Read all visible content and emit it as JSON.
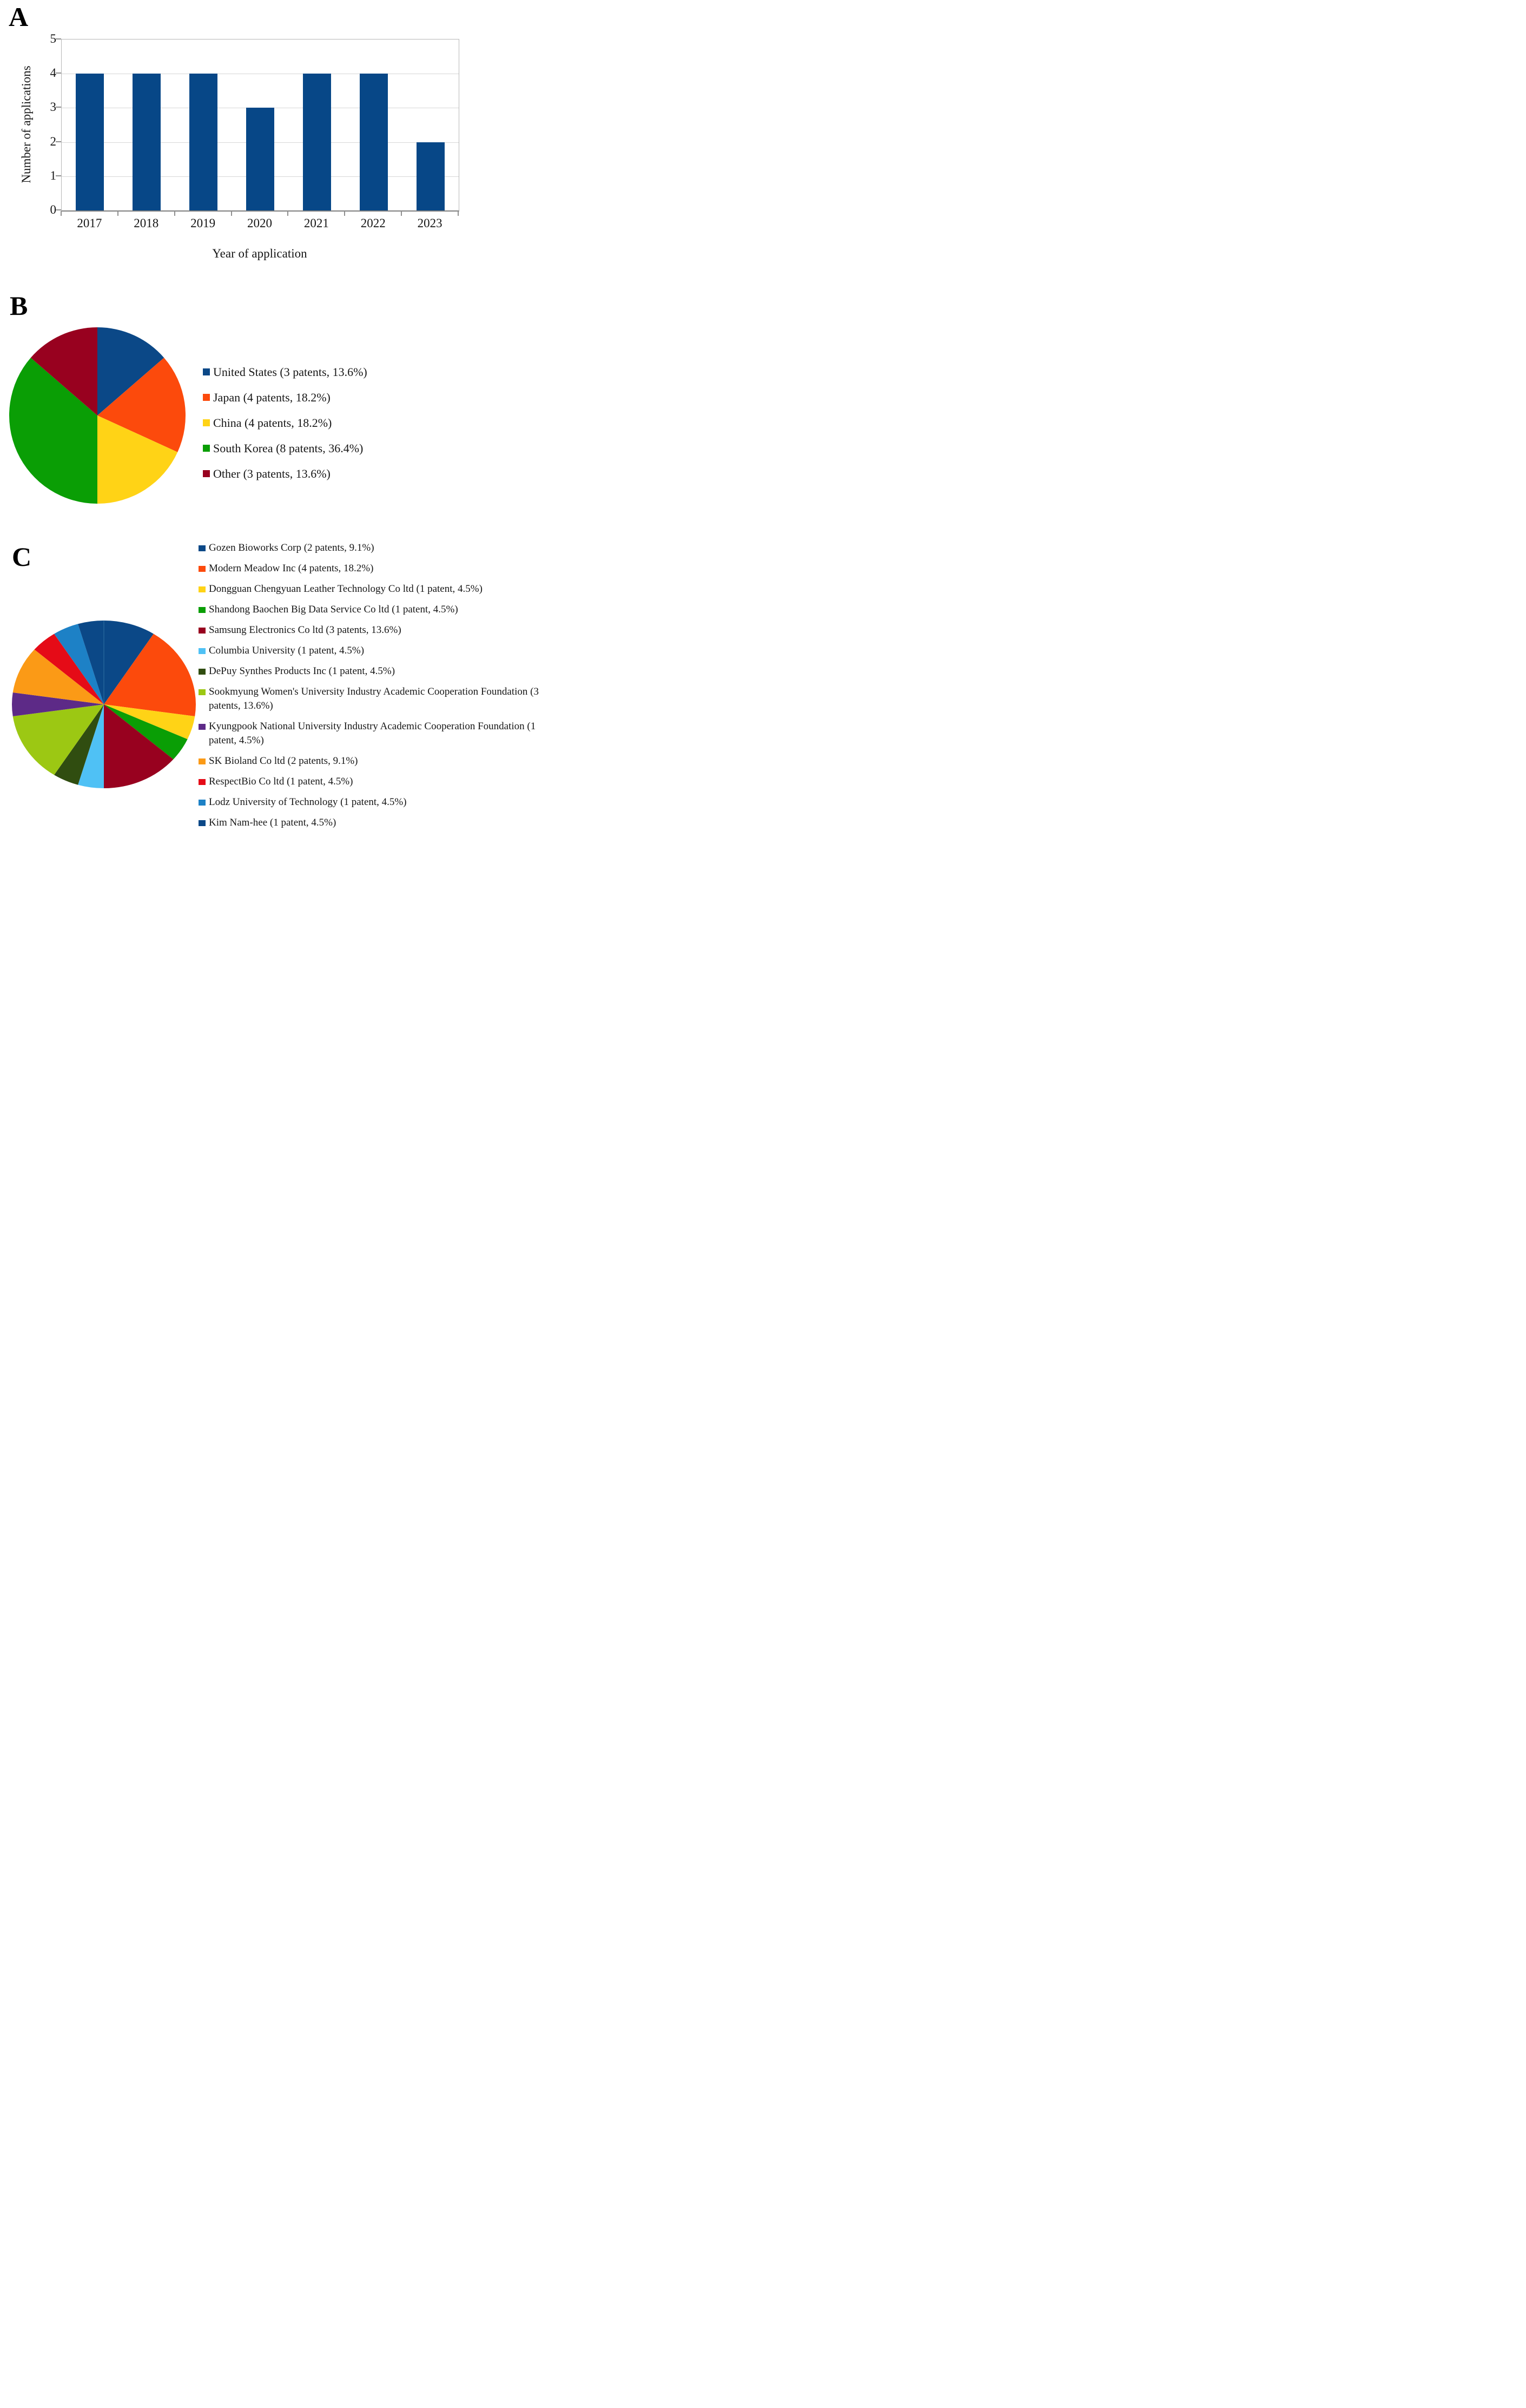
{
  "panels": {
    "a": {
      "label": "A"
    },
    "b": {
      "label": "B"
    },
    "c": {
      "label": "C"
    }
  },
  "chart_data": [
    {
      "id": "applications-by-year",
      "type": "bar",
      "title": "",
      "xlabel": "Year of application",
      "ylabel": "Number of applications",
      "categories": [
        "2017",
        "2018",
        "2019",
        "2020",
        "2021",
        "2022",
        "2023"
      ],
      "values": [
        4,
        4,
        4,
        3,
        4,
        4,
        2
      ],
      "ylim": [
        0,
        5
      ],
      "yticks": [
        0,
        1,
        2,
        3,
        4,
        5
      ],
      "grid": true,
      "legend_position": "none",
      "bar_color": "#074787",
      "grid_color": "#d7d7d7"
    },
    {
      "id": "patents-by-country",
      "type": "pie",
      "legend_position": "right",
      "start_angle_deg": 0,
      "direction": "clockwise",
      "slices": [
        {
          "label": "United States (3 patents, 13.6%)",
          "name": "United States",
          "value": 3,
          "pct": 13.6,
          "color": "#0b4887"
        },
        {
          "label": "Japan (4 patents, 18.2%)",
          "name": "Japan",
          "value": 4,
          "pct": 18.2,
          "color": "#fc4a0c"
        },
        {
          "label": "China (4 patents, 18.2%)",
          "name": "China",
          "value": 4,
          "pct": 18.2,
          "color": "#ffd316"
        },
        {
          "label": "South Korea (8 patents, 36.4%)",
          "name": "South Korea",
          "value": 8,
          "pct": 36.4,
          "color": "#0a9e05"
        },
        {
          "label": "Other (3 patents, 13.6%)",
          "name": "Other",
          "value": 3,
          "pct": 13.6,
          "color": "#98011f"
        }
      ]
    },
    {
      "id": "patents-by-assignee",
      "type": "pie",
      "legend_position": "right",
      "start_angle_deg": 0,
      "direction": "clockwise",
      "slices": [
        {
          "label": "Gozen Bioworks Corp (2 patents, 9.1%)",
          "name": "Gozen Bioworks Corp",
          "value": 2,
          "pct": 9.1,
          "color": "#0b4887"
        },
        {
          "label": "Modern Meadow Inc (4 patents, 18.2%)",
          "name": "Modern Meadow Inc",
          "value": 4,
          "pct": 18.2,
          "color": "#fc4a0c"
        },
        {
          "label": "Dongguan Chengyuan Leather Technology Co ltd (1 patent, 4.5%)",
          "name": "Dongguan Chengyuan Leather Technology Co ltd",
          "value": 1,
          "pct": 4.5,
          "color": "#ffd316"
        },
        {
          "label": "Shandong Baochen Big Data Service Co ltd (1 patent, 4.5%)",
          "name": "Shandong Baochen Big Data Service Co ltd",
          "value": 1,
          "pct": 4.5,
          "color": "#0a9e05"
        },
        {
          "label": "Samsung Electronics Co ltd (3 patents, 13.6%)",
          "name": "Samsung Electronics Co ltd",
          "value": 3,
          "pct": 13.6,
          "color": "#98011f"
        },
        {
          "label": "Columbia University (1 patent, 4.5%)",
          "name": "Columbia University",
          "value": 1,
          "pct": 4.5,
          "color": "#4fc1f5"
        },
        {
          "label": "DePuy Synthes Products Inc (1 patent, 4.5%)",
          "name": "DePuy Synthes Products Inc",
          "value": 1,
          "pct": 4.5,
          "color": "#304d10"
        },
        {
          "label": "Sookmyung Women's University Industry Academic Cooperation Foundation (3 patents, 13.6%)",
          "name": "Sookmyung Women's University Industry Academic Cooperation Foundation",
          "value": 3,
          "pct": 13.6,
          "color": "#9cc813"
        },
        {
          "label": "Kyungpook National University Industry Academic Cooperation Foundation (1 patent, 4.5%)",
          "name": "Kyungpook National University Industry Academic Cooperation Foundation",
          "value": 1,
          "pct": 4.5,
          "color": "#5d2a87"
        },
        {
          "label": "SK Bioland Co ltd (2 patents, 9.1%)",
          "name": "SK Bioland Co ltd",
          "value": 2,
          "pct": 9.1,
          "color": "#fb9a16"
        },
        {
          "label": "RespectBio Co ltd (1 patent, 4.5%)",
          "name": "RespectBio Co ltd",
          "value": 1,
          "pct": 4.5,
          "color": "#e50b17"
        },
        {
          "label": "Lodz University of Technology (1 patent, 4.5%)",
          "name": "Lodz University of Technology",
          "value": 1,
          "pct": 4.5,
          "color": "#1d81c6"
        },
        {
          "label": "Kim Nam-hee (1 patent, 4.5%)",
          "name": "Kim Nam-hee",
          "value": 1,
          "pct": 4.5,
          "color": "#0b4887"
        }
      ]
    }
  ]
}
